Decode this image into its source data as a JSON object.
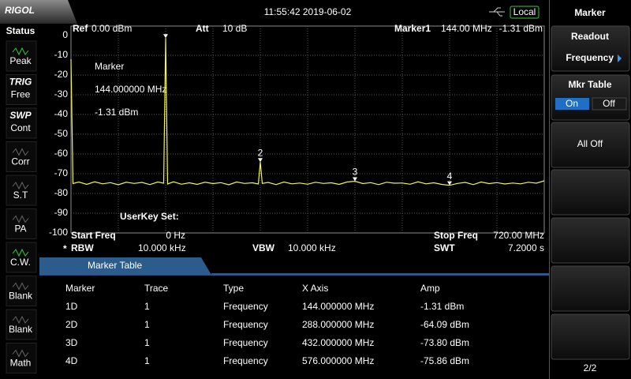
{
  "header": {
    "brand": "RIGOL",
    "datetime": "11:55:42 2019-06-02",
    "remote": "Local"
  },
  "status": {
    "title": "Status",
    "items": [
      {
        "label": "Peak"
      },
      {
        "tag": "TRIG",
        "label": "Free"
      },
      {
        "tag": "SWP",
        "label": "Cont"
      },
      {
        "label": "Corr"
      },
      {
        "label": "S.T"
      },
      {
        "label": "PA"
      },
      {
        "label": "C.W."
      },
      {
        "label": "Blank"
      },
      {
        "label": "Blank"
      },
      {
        "label": "Math"
      }
    ]
  },
  "plot": {
    "ref_label": "Ref",
    "ref_value": "0.00 dBm",
    "att_label": "Att",
    "att_value": "10 dB",
    "marker_label": "Marker1",
    "marker_freq": "144.00 MHz",
    "marker_amp": "-1.31 dBm",
    "readout": [
      "Marker",
      "144.000000 MHz",
      "-1.31 dBm"
    ],
    "userkey": "UserKey Set:",
    "xlim": [
      0,
      720
    ],
    "ylim": [
      -100,
      0
    ],
    "yticks": [
      0,
      -10,
      -20,
      -30,
      -40,
      -50,
      -60,
      -70,
      -80,
      -90,
      -100
    ],
    "grid": true,
    "trace": {
      "color": "#f5f542",
      "x": [
        0,
        3,
        12,
        24,
        36,
        48,
        60,
        72,
        84,
        96,
        108,
        120,
        132,
        141,
        144,
        147,
        156,
        168,
        180,
        192,
        204,
        216,
        228,
        240,
        252,
        264,
        276,
        285,
        288,
        291,
        300,
        312,
        324,
        336,
        348,
        360,
        372,
        384,
        396,
        408,
        420,
        432,
        444,
        456,
        468,
        480,
        492,
        504,
        516,
        528,
        540,
        552,
        564,
        576,
        588,
        600,
        612,
        624,
        636,
        648,
        660,
        672,
        684,
        696,
        708,
        720
      ],
      "y": [
        -12,
        -75,
        -74.2,
        -75.4,
        -74.1,
        -75.1,
        -74.5,
        -75.6,
        -74.3,
        -74.9,
        -74.4,
        -75.5,
        -74.2,
        -74.8,
        -1.31,
        -75.2,
        -74.1,
        -75.3,
        -74.6,
        -75.4,
        -74.3,
        -75,
        -74.5,
        -75.6,
        -74.2,
        -74.9,
        -74.6,
        -75.2,
        -64.09,
        -74.9,
        -74.4,
        -75.5,
        -74.2,
        -75.1,
        -74.7,
        -75.3,
        -74.3,
        -74.9,
        -74.6,
        -75.4,
        -74.2,
        -73.8,
        -75,
        -74.5,
        -75.5,
        -74.3,
        -74.8,
        -74.7,
        -75.3,
        -74.1,
        -75.1,
        -74.6,
        -75.4,
        -75.86,
        -74.9,
        -74.4,
        -75.5,
        -74.2,
        -75,
        -74.5,
        -75.2,
        -74.7,
        -75.1,
        -74.3,
        -74.8,
        -73.6
      ]
    },
    "markers": [
      {
        "x": 144,
        "y": -1.31
      },
      {
        "label": "2",
        "x": 288,
        "y": -64.09
      },
      {
        "label": "3",
        "x": 432,
        "y": -73.8
      },
      {
        "label": "4",
        "x": 576,
        "y": -75.86
      }
    ]
  },
  "footer": {
    "start_label": "Start Freq",
    "start_value": "0 Hz",
    "stop_label": "Stop Freq",
    "stop_value": "720.00 MHz",
    "rbw_flag": "*",
    "rbw_label": "RBW",
    "rbw_value": "10.000 kHz",
    "vbw_label": "VBW",
    "vbw_value": "10.000 kHz",
    "swt_label": "SWT",
    "swt_value": "7.2000 s"
  },
  "marker_table": {
    "title": "Marker Table",
    "columns": [
      "Marker",
      "Trace",
      "Type",
      "X Axis",
      "Amp"
    ],
    "rows": [
      [
        "1D",
        "1",
        "Frequency",
        "144.000000 MHz",
        "-1.31 dBm"
      ],
      [
        "2D",
        "1",
        "Frequency",
        "288.000000 MHz",
        "-64.09 dBm"
      ],
      [
        "3D",
        "1",
        "Frequency",
        "432.000000 MHz",
        "-73.80 dBm"
      ],
      [
        "4D",
        "1",
        "Frequency",
        "576.000000 MHz",
        "-75.86 dBm"
      ]
    ]
  },
  "menu": {
    "title": "Marker",
    "readout_label": "Readout",
    "readout_value": "Frequency",
    "table_label": "Mkr Table",
    "table_on": "On",
    "table_off": "Off",
    "all_off": "All Off",
    "page": "2/2"
  }
}
